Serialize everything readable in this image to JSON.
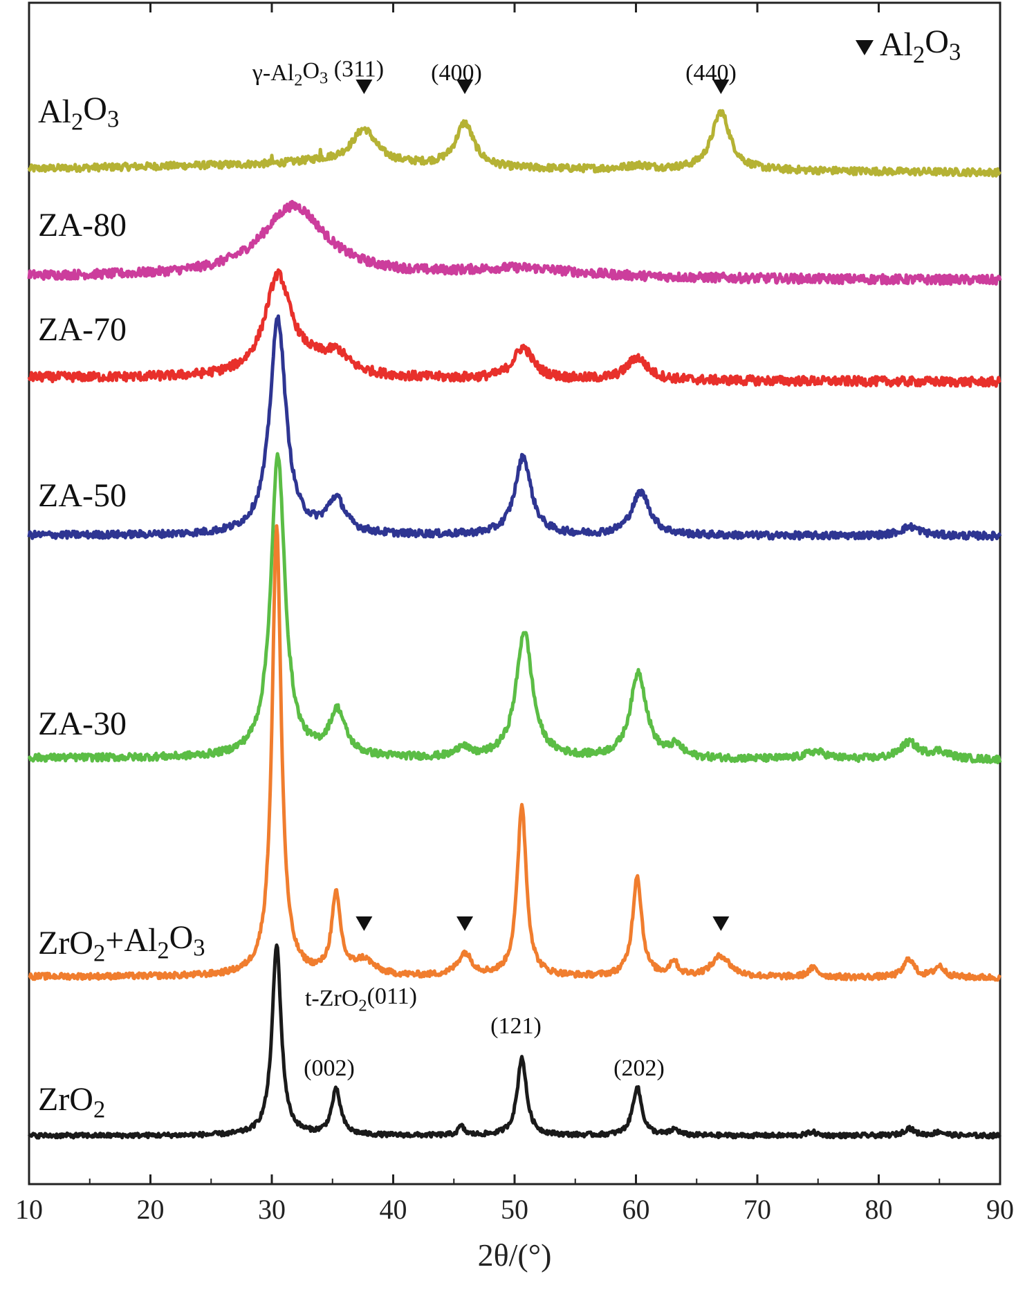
{
  "chart_data": {
    "type": "line",
    "xlabel": "2θ/(°)",
    "ylabel": "",
    "xlim": [
      10,
      90
    ],
    "xticks": [
      "10",
      "20",
      "30",
      "40",
      "50",
      "60",
      "70",
      "80",
      "90"
    ],
    "grid": false,
    "legend": {
      "text": "Al2O3",
      "marker": "down-triangle",
      "placement": "top-right"
    },
    "series": [
      {
        "name": "Al2O3",
        "color": "#b5b234",
        "baseline": 0.92,
        "noise": 0.022,
        "background": [
          [
            10,
            0.0
          ],
          [
            30,
            0.06
          ],
          [
            34,
            0.1
          ],
          [
            50,
            0.0
          ],
          [
            90,
            -0.05
          ]
        ],
        "peaks": [
          [
            37.6,
            0.45,
            1.2
          ],
          [
            45.9,
            0.58,
            0.9
          ],
          [
            67.0,
            0.78,
            0.9
          ],
          [
            60.2,
            0.05,
            1.2
          ]
        ]
      },
      {
        "name": "ZA-80",
        "color": "#cc3d9c",
        "baseline": 0.8,
        "noise": 0.028,
        "background": [
          [
            10,
            0.0
          ],
          [
            90,
            -0.05
          ]
        ],
        "peaks": [
          [
            31.8,
            0.95,
            3.2
          ],
          [
            50.5,
            0.12,
            6.0
          ]
        ]
      },
      {
        "name": "ZA-70",
        "color": "#e8302b",
        "baseline": 0.72,
        "noise": 0.028,
        "background": [
          [
            10,
            0.0
          ],
          [
            90,
            -0.06
          ]
        ],
        "peaks": [
          [
            30.5,
            1.3,
            1.3
          ],
          [
            33.5,
            0.18,
            3.0
          ],
          [
            35.4,
            0.2,
            1.0
          ],
          [
            50.7,
            0.42,
            1.0
          ],
          [
            60.1,
            0.3,
            1.0
          ]
        ]
      },
      {
        "name": "ZA-50",
        "color": "#2e3592",
        "baseline": 0.52,
        "noise": 0.022,
        "background": [
          [
            10,
            0.0
          ],
          [
            90,
            -0.01
          ]
        ],
        "peaks": [
          [
            30.5,
            2.9,
            0.8
          ],
          [
            35.3,
            0.45,
            0.9
          ],
          [
            50.7,
            1.05,
            0.8
          ],
          [
            60.4,
            0.58,
            0.9
          ],
          [
            82.6,
            0.12,
            1.0
          ]
        ]
      },
      {
        "name": "ZA-30",
        "color": "#5bbd45",
        "baseline": 0.0,
        "noise": 0.022,
        "background": [
          [
            10,
            0.0
          ],
          [
            90,
            -0.025
          ]
        ],
        "peaks": [
          [
            30.5,
            4.05,
            0.7
          ],
          [
            35.4,
            0.6,
            0.8
          ],
          [
            45.7,
            0.15,
            0.5
          ],
          [
            50.8,
            1.7,
            0.8
          ],
          [
            60.2,
            1.15,
            0.8
          ],
          [
            63.3,
            0.15,
            0.6
          ],
          [
            74.8,
            0.1,
            1.0
          ],
          [
            82.5,
            0.22,
            0.9
          ],
          [
            85.0,
            0.1,
            1.0
          ]
        ]
      },
      {
        "name": "ZrO2+Al2O3",
        "color": "#f07d2e",
        "baseline": -0.3,
        "noise": 0.018,
        "background": [
          [
            10,
            0.0
          ],
          [
            90,
            -0.015
          ]
        ],
        "peaks": [
          [
            30.4,
            6.0,
            0.45
          ],
          [
            35.3,
            1.05,
            0.45
          ],
          [
            37.6,
            0.2,
            1.0
          ],
          [
            45.9,
            0.3,
            0.7
          ],
          [
            50.6,
            2.3,
            0.45
          ],
          [
            60.1,
            1.35,
            0.45
          ],
          [
            63.1,
            0.2,
            0.4
          ],
          [
            67.0,
            0.28,
            0.9
          ],
          [
            74.6,
            0.12,
            0.5
          ],
          [
            82.5,
            0.25,
            0.5
          ],
          [
            85.0,
            0.15,
            0.5
          ]
        ]
      },
      {
        "name": "ZrO2",
        "color": "#1a1a1a",
        "baseline": -0.3,
        "noise": 0.014,
        "background": [
          [
            10,
            0.0
          ],
          [
            90,
            0.0
          ]
        ],
        "peaks": [
          [
            30.4,
            2.55,
            0.45
          ],
          [
            35.3,
            0.6,
            0.45
          ],
          [
            45.6,
            0.12,
            0.3
          ],
          [
            50.6,
            1.05,
            0.45
          ],
          [
            60.1,
            0.65,
            0.45
          ],
          [
            63.2,
            0.08,
            0.4
          ],
          [
            74.5,
            0.05,
            0.4
          ],
          [
            82.5,
            0.1,
            0.5
          ],
          [
            85.0,
            0.05,
            0.5
          ]
        ]
      }
    ],
    "series_labels": [
      {
        "text": "Al2O3",
        "parts": [
          [
            "Al",
            ""
          ],
          [
            "2",
            "sub"
          ],
          [
            "O",
            ""
          ],
          [
            "3",
            "sub"
          ]
        ]
      },
      {
        "text": "ZA-80",
        "parts": [
          [
            "ZA-80",
            ""
          ]
        ]
      },
      {
        "text": "ZA-70",
        "parts": [
          [
            "ZA-70",
            ""
          ]
        ]
      },
      {
        "text": "ZA-50",
        "parts": [
          [
            "ZA-50",
            ""
          ]
        ]
      },
      {
        "text": "ZA-30",
        "parts": [
          [
            "ZA-30",
            ""
          ]
        ]
      },
      {
        "text": "ZrO2+Al2O3",
        "parts": [
          [
            "ZrO",
            ""
          ],
          [
            "2",
            "sub"
          ],
          [
            "+Al",
            ""
          ],
          [
            "2",
            "sub"
          ],
          [
            "O",
            ""
          ],
          [
            "3",
            "sub"
          ]
        ]
      },
      {
        "text": "ZrO2",
        "parts": [
          [
            "ZrO",
            ""
          ],
          [
            "2",
            "sub"
          ]
        ]
      }
    ],
    "annotations": [
      {
        "text": "γ-Al2O3 (311)",
        "parts": [
          [
            "γ-Al",
            ""
          ],
          [
            "2",
            "sub"
          ],
          [
            "O",
            ""
          ],
          [
            "3",
            "sub"
          ],
          [
            " (311)",
            ""
          ]
        ],
        "at_x": 37.6,
        "series": "Al2O3"
      },
      {
        "text": "(400)",
        "parts": [
          [
            "(400)",
            ""
          ]
        ],
        "at_x": 45.9,
        "series": "Al2O3"
      },
      {
        "text": "(440)",
        "parts": [
          [
            "(440)",
            ""
          ]
        ],
        "at_x": 67.0,
        "series": "Al2O3"
      },
      {
        "text": "t-ZrO2(011)",
        "parts": [
          [
            "t-ZrO",
            ""
          ],
          [
            "2",
            "sub"
          ],
          [
            "(011)",
            ""
          ]
        ],
        "at_x": 30.4,
        "series": "ZrO2"
      },
      {
        "text": "(002)",
        "parts": [
          [
            "(002)",
            ""
          ]
        ],
        "at_x": 35.3,
        "series": "ZrO2"
      },
      {
        "text": "(121)",
        "parts": [
          [
            "(121)",
            ""
          ]
        ],
        "at_x": 50.6,
        "series": "ZrO2"
      },
      {
        "text": "(202)",
        "parts": [
          [
            "(202)",
            ""
          ]
        ],
        "at_x": 60.1,
        "series": "ZrO2"
      }
    ],
    "triangle_markers": [
      {
        "series": "Al2O3",
        "x": [
          37.6,
          45.9,
          67.0
        ]
      },
      {
        "series": "ZrO2+Al2O3",
        "x": [
          37.6,
          45.9,
          67.0
        ]
      }
    ]
  }
}
